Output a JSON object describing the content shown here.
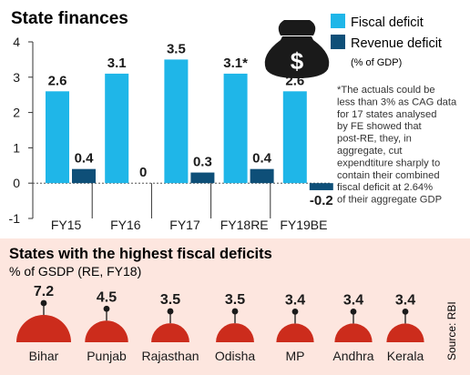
{
  "colors": {
    "fiscal": "#1fb6e8",
    "revenue": "#0e4f78",
    "dome": "#cc2c1c",
    "panel_bg": "#fde6df",
    "text": "#1a1a1a"
  },
  "icons": {
    "money_bag": "money-bag-icon"
  },
  "chart_data": [
    {
      "type": "bar",
      "title": "State finances",
      "categories": [
        "FY15",
        "FY16",
        "FY17",
        "FY18RE",
        "FY19BE"
      ],
      "series": [
        {
          "name": "Fiscal deficit",
          "values": [
            2.6,
            3.1,
            3.5,
            3.1,
            2.6
          ],
          "labels": [
            "2.6",
            "3.1",
            "3.5",
            "3.1*",
            "2.6"
          ]
        },
        {
          "name": "Revenue deficit",
          "values": [
            0.4,
            0,
            0.3,
            0.4,
            -0.2
          ],
          "labels": [
            "0.4",
            "0",
            "0.3",
            "0.4",
            "-0.2"
          ]
        }
      ],
      "legend_unit": "(% of GDP)",
      "ylim": [
        -1,
        4
      ],
      "yticks": [
        -1,
        0,
        1,
        2,
        3,
        4
      ],
      "legend_position": "top-right",
      "grid": false,
      "footnote": "*The actuals could be less than 3% as CAG data for 17 states analysed by FE showed that post-RE, they, in aggregate, cut expendtiture sharply to contain their combined  fiscal deficit at 2.64% of their aggregate GDP"
    },
    {
      "type": "bar",
      "title": "States with the highest fiscal deficits",
      "subtitle": "% of GSDP (RE, FY18)",
      "categories": [
        "Bihar",
        "Punjab",
        "Rajasthan",
        "Odisha",
        "MP",
        "Andhra",
        "Kerala"
      ],
      "values": [
        7.2,
        4.5,
        3.5,
        3.5,
        3.4,
        3.4,
        3.4
      ],
      "labels": [
        "7.2",
        "4.5",
        "3.5",
        "3.5",
        "3.4",
        "3.4",
        "3.4"
      ],
      "source": "Source: RBI"
    }
  ]
}
